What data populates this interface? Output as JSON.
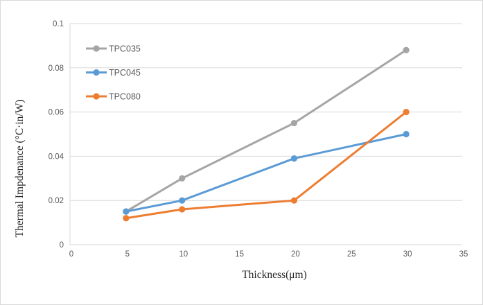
{
  "frame": {
    "background_color": "#FFFFFF",
    "border_color": "#D9D9D9"
  },
  "chart_data": {
    "type": "line",
    "title": "",
    "x": [
      5,
      10,
      20,
      30
    ],
    "series": [
      {
        "name": "TPC035",
        "color": "#A5A5A5",
        "values": [
          0.015,
          0.03,
          0.055,
          0.088
        ]
      },
      {
        "name": "TPC045",
        "color": "#5B9BD5",
        "values": [
          0.015,
          0.02,
          0.039,
          0.05
        ]
      },
      {
        "name": "TPC080",
        "color": "#ED7D31",
        "values": [
          0.012,
          0.016,
          0.02,
          0.06
        ]
      }
    ],
    "xlabel": "Thickness(μm)",
    "ylabel": "Thermal Impdenance  (°C·in/W)",
    "xlim": [
      0,
      35
    ],
    "ylim": [
      0,
      0.1
    ],
    "x_ticks": [
      0,
      5,
      10,
      15,
      20,
      25,
      30,
      35
    ],
    "x_tick_labels": [
      "0",
      "5",
      "10",
      "15",
      "20",
      "25",
      "30",
      "35"
    ],
    "y_ticks": [
      0,
      0.02,
      0.04,
      0.06,
      0.08,
      0.1
    ],
    "y_tick_labels": [
      "0",
      "0.02",
      "0.04",
      "0.06",
      "0.08",
      "0.1"
    ],
    "grid": "horizontal",
    "gridline_color": "#D9D9D9",
    "axis_line_color": "#D9D9D9",
    "tick_label_color": "#595959",
    "axis_title_color": "#262626",
    "legend": {
      "position": "inside-top-left",
      "entries": [
        {
          "label": "TPC035",
          "color": "#A5A5A5"
        },
        {
          "label": "TPC045",
          "color": "#5B9BD5"
        },
        {
          "label": "TPC080",
          "color": "#ED7D31"
        }
      ],
      "label_color": "#595959"
    },
    "marker": "circle"
  }
}
